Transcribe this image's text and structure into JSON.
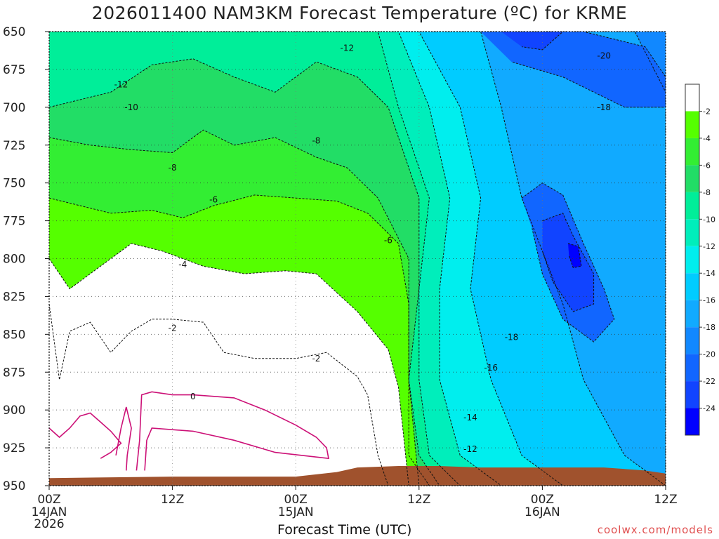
{
  "title": "2026011400 NAM3KM Forecast Temperature (ºC) for KRME",
  "credit": "coolwx.com/models",
  "chart_data": {
    "type": "heatmap",
    "title": "2026011400 NAM3KM Forecast Temperature (ºC) for KRME",
    "xlabel": "Forecast Time (UTC)",
    "ylabel": "",
    "y_axis": {
      "ticks": [
        650,
        675,
        700,
        725,
        750,
        775,
        800,
        825,
        850,
        875,
        900,
        925,
        950
      ],
      "ylim": [
        650,
        950
      ],
      "inverted": true
    },
    "x_axis": {
      "hours": [
        0,
        12,
        24,
        36,
        48,
        60
      ],
      "ticks": [
        {
          "hour": 0,
          "label": "00Z",
          "sub": "14JAN",
          "sub2": "2026"
        },
        {
          "hour": 12,
          "label": "12Z",
          "sub": "",
          "sub2": ""
        },
        {
          "hour": 24,
          "label": "00Z",
          "sub": "15JAN",
          "sub2": ""
        },
        {
          "hour": 36,
          "label": "12Z",
          "sub": "",
          "sub2": ""
        },
        {
          "hour": 48,
          "label": "00Z",
          "sub": "16JAN",
          "sub2": ""
        },
        {
          "hour": 60,
          "label": "12Z",
          "sub": "",
          "sub2": ""
        }
      ]
    },
    "colorbar": {
      "levels": [
        -2,
        -4,
        -6,
        -8,
        -10,
        -12,
        -14,
        -16,
        -18,
        -20,
        -22,
        -24
      ],
      "labels": [
        "-2",
        "-4",
        "-6",
        "-8",
        "-10",
        "-12",
        "-14",
        "-16",
        "-18",
        "-20",
        "-22",
        "-24"
      ],
      "colors": [
        "#ffffff",
        "#55ff00",
        "#33ee33",
        "#22dd66",
        "#00ee99",
        "#00eebb",
        "#00eeee",
        "#00ccff",
        "#11aaff",
        "#1188ff",
        "#1166ff",
        "#1144ff",
        "#0000ff"
      ]
    },
    "freezing_line_color": "#cc1177",
    "terrain_color": "#a0522d",
    "contour_labels": [
      {
        "text": "-12",
        "hour": 29,
        "p": 661
      },
      {
        "text": "-20",
        "hour": 54,
        "p": 666
      },
      {
        "text": "-12",
        "hour": 7,
        "p": 685
      },
      {
        "text": "-10",
        "hour": 8,
        "p": 700
      },
      {
        "text": "-18",
        "hour": 54,
        "p": 700
      },
      {
        "text": "-8",
        "hour": 26,
        "p": 722
      },
      {
        "text": "-8",
        "hour": 12,
        "p": 740
      },
      {
        "text": "-6",
        "hour": 16,
        "p": 761
      },
      {
        "text": "-6",
        "hour": 33,
        "p": 788
      },
      {
        "text": "-4",
        "hour": 13,
        "p": 804
      },
      {
        "text": "-2",
        "hour": 12,
        "p": 846
      },
      {
        "text": "-18",
        "hour": 45,
        "p": 852
      },
      {
        "text": "-2",
        "hour": 26,
        "p": 866
      },
      {
        "text": "-16",
        "hour": 43,
        "p": 872
      },
      {
        "text": "0",
        "hour": 14,
        "p": 891
      },
      {
        "text": "-14",
        "hour": 41,
        "p": 905
      },
      {
        "text": "-12",
        "hour": 41,
        "p": 926
      }
    ],
    "grid": true
  }
}
